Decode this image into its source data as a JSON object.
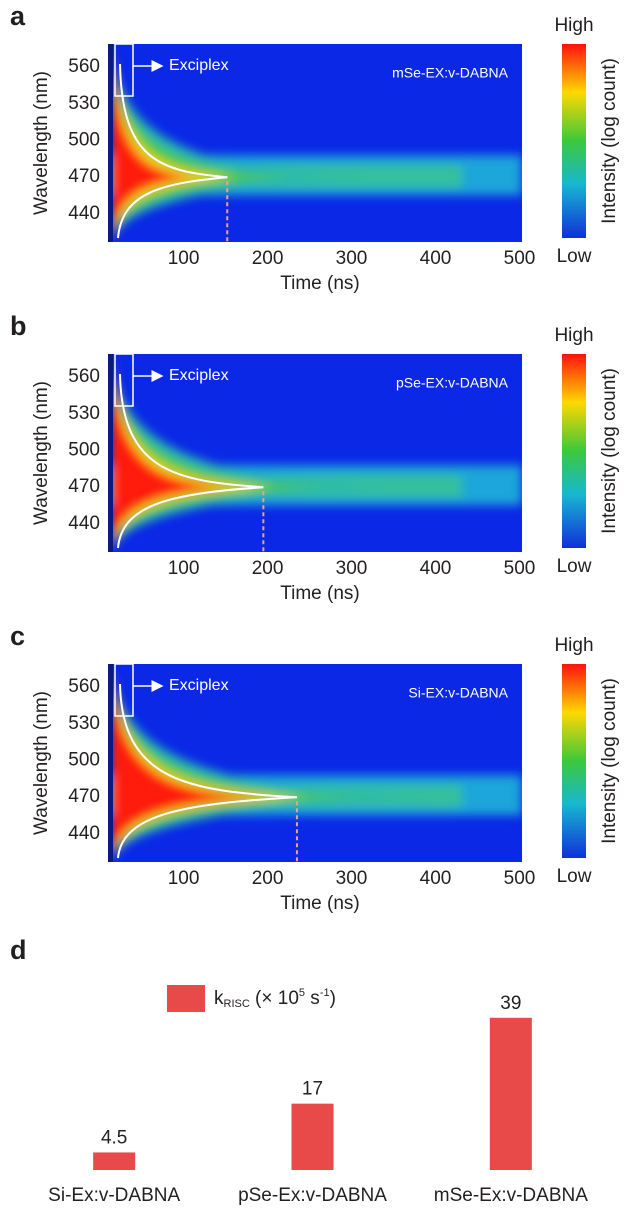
{
  "chart_data": [
    {
      "type": "heatmap",
      "panel": "a",
      "title": "mSe-EX:v-DABNA",
      "annotation": "Exciplex",
      "xlabel": "Time (ns)",
      "ylabel": "Wavelength (nm)",
      "xlim": [
        10,
        503
      ],
      "ylim": [
        417,
        579
      ],
      "xticks": [
        100,
        200,
        300,
        400,
        500
      ],
      "yticks": [
        440,
        470,
        500,
        530,
        560
      ],
      "peak_wavelength": 470,
      "dashed_x": 152,
      "colorbar": {
        "high": "High",
        "low": "Low",
        "label": "Intensity (log count)"
      }
    },
    {
      "type": "heatmap",
      "panel": "b",
      "title": "pSe-EX:v-DABNA",
      "annotation": "Exciplex",
      "xlabel": "Time (ns)",
      "ylabel": "Wavelength (nm)",
      "xlim": [
        10,
        503
      ],
      "ylim": [
        417,
        579
      ],
      "xticks": [
        100,
        200,
        300,
        400,
        500
      ],
      "yticks": [
        440,
        470,
        500,
        530,
        560
      ],
      "peak_wavelength": 470,
      "dashed_x": 195,
      "colorbar": {
        "high": "High",
        "low": "Low",
        "label": "Intensity (log count)"
      }
    },
    {
      "type": "heatmap",
      "panel": "c",
      "title": "Si-EX:v-DABNA",
      "annotation": "Exciplex",
      "xlabel": "Time (ns)",
      "ylabel": "Wavelength (nm)",
      "xlim": [
        10,
        503
      ],
      "ylim": [
        417,
        579
      ],
      "xticks": [
        100,
        200,
        300,
        400,
        500
      ],
      "yticks": [
        440,
        470,
        500,
        530,
        560
      ],
      "peak_wavelength": 470,
      "dashed_x": 235,
      "colorbar": {
        "high": "High",
        "low": "Low",
        "label": "Intensity (log count)"
      }
    },
    {
      "type": "bar",
      "panel": "d",
      "legend_label": [
        {
          "text": "k"
        },
        {
          "text": "RISC",
          "sub": true
        },
        {
          "text": " (× 10"
        },
        {
          "text": "5",
          "sup": true
        },
        {
          "text": "  s"
        },
        {
          "text": "-1",
          "sup": true
        },
        {
          "text": ")"
        }
      ],
      "categories": [
        "Si-Ex:v-DABNA",
        "pSe-Ex:v-DABNA",
        "mSe-Ex:v-DABNA"
      ],
      "values": [
        4.5,
        17,
        39
      ],
      "color": "#e84a4a",
      "ylim": [
        0,
        41
      ]
    }
  ]
}
